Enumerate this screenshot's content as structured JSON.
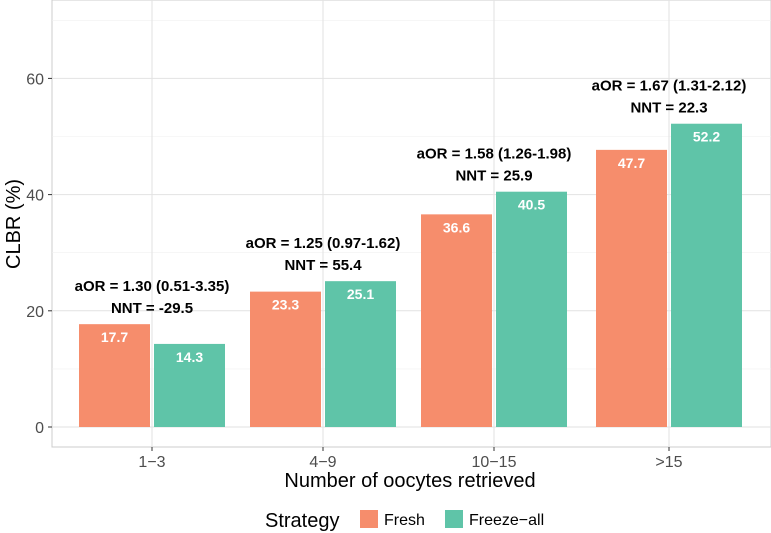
{
  "chart_data": {
    "type": "bar",
    "xlabel": "Number of oocytes retrieved",
    "ylabel": "CLBR (%)",
    "ylim": [
      0,
      72
    ],
    "yticks": [
      0,
      20,
      40,
      60
    ],
    "grid": true,
    "legend_placement": "bottom",
    "legend_title": "Strategy",
    "categories": [
      "1−3",
      "4−9",
      "10−15",
      ">15"
    ],
    "series": [
      {
        "name": "Fresh",
        "color": "#f68d6c",
        "values": [
          17.7,
          23.3,
          36.6,
          47.7
        ]
      },
      {
        "name": "Freeze−all",
        "color": "#5fc4a8",
        "values": [
          14.3,
          25.1,
          40.5,
          52.2
        ]
      }
    ],
    "data_labels": {
      "Fresh": [
        "17.7",
        "23.3",
        "36.6",
        "47.7"
      ],
      "Freeze−all": [
        "14.3",
        "25.1",
        "40.5",
        "52.2"
      ]
    },
    "annotations": [
      {
        "line1": "aOR = 1.30 (0.51-3.35)",
        "line2": "NNT = -29.5"
      },
      {
        "line1": "aOR = 1.25 (0.97-1.62)",
        "line2": "NNT = 55.4"
      },
      {
        "line1": "aOR = 1.58 (1.26-1.98)",
        "line2": "NNT = 25.9"
      },
      {
        "line1": "aOR = 1.67 (1.31-2.12)",
        "line2": "NNT = 22.3"
      }
    ]
  }
}
